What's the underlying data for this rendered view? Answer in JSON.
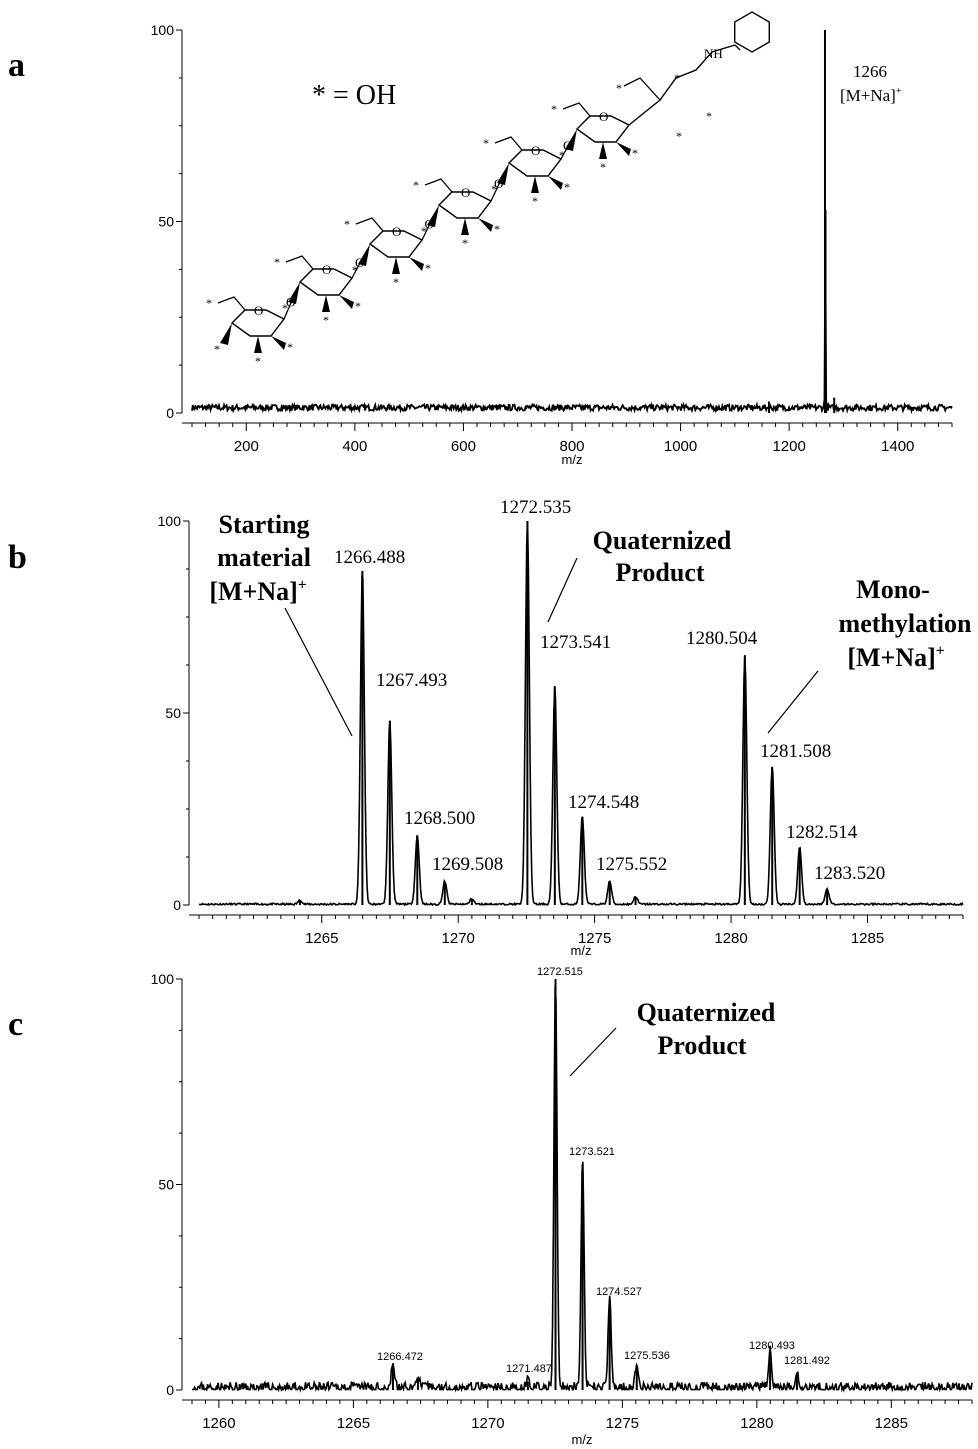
{
  "chart_data": [
    {
      "panel": "a",
      "type": "line",
      "xlabel": "m/z",
      "xlim": [
        100,
        1500
      ],
      "ylim": [
        0,
        100
      ],
      "x_ticks": [
        200,
        400,
        600,
        800,
        1000,
        1200,
        1400
      ],
      "y_ticks": [
        0,
        50,
        100
      ],
      "legend_text": "* = OH",
      "peaks": [
        {
          "x": 1266,
          "y": 100
        },
        {
          "x": 1267,
          "y": 53
        },
        {
          "x": 1268,
          "y": 2
        },
        {
          "x": 1283,
          "y": 4
        },
        {
          "x": 1163,
          "y": 3
        }
      ],
      "annotations": [
        {
          "text": "1266",
          "sup": ""
        },
        {
          "text": "[M+Na]",
          "sup": "+"
        }
      ]
    },
    {
      "panel": "b",
      "type": "line",
      "xlabel": "m/z",
      "xlim": [
        1260.5,
        1288.5
      ],
      "ylim": [
        0,
        100
      ],
      "x_ticks": [
        1265,
        1270,
        1275,
        1280,
        1285
      ],
      "y_ticks": [
        0,
        50,
        100
      ],
      "peaks": [
        {
          "x": 1266.488,
          "y": 87,
          "label": "1266.488"
        },
        {
          "x": 1267.493,
          "y": 48,
          "label": "1267.493"
        },
        {
          "x": 1268.5,
          "y": 18,
          "label": "1268.500"
        },
        {
          "x": 1269.508,
          "y": 6,
          "label": "1269.508"
        },
        {
          "x": 1272.535,
          "y": 100,
          "label": "1272.535"
        },
        {
          "x": 1273.541,
          "y": 57,
          "label": "1273.541"
        },
        {
          "x": 1274.548,
          "y": 23,
          "label": "1274.548"
        },
        {
          "x": 1275.552,
          "y": 6,
          "label": "1275.552"
        },
        {
          "x": 1280.504,
          "y": 65,
          "label": "1280.504"
        },
        {
          "x": 1281.508,
          "y": 36,
          "label": "1281.508"
        },
        {
          "x": 1282.514,
          "y": 15,
          "label": "1282.514"
        },
        {
          "x": 1283.52,
          "y": 4,
          "label": "1283.520"
        },
        {
          "x": 1264.2,
          "y": 1
        },
        {
          "x": 1270.5,
          "y": 1.5
        },
        {
          "x": 1276.5,
          "y": 2
        }
      ],
      "annotations": [
        {
          "lines": [
            "Starting",
            "material",
            "[M+Na]"
          ],
          "sup": "+"
        },
        {
          "lines": [
            "Quaternized",
            "Product"
          ],
          "sup": ""
        },
        {
          "lines": [
            "Mono-",
            "methylation",
            "[M+Na]"
          ],
          "sup": "+"
        }
      ]
    },
    {
      "panel": "c",
      "type": "line",
      "xlabel": "m/z",
      "xlim": [
        1259,
        1288
      ],
      "ylim": [
        0,
        100
      ],
      "x_ticks": [
        1260,
        1265,
        1270,
        1275,
        1280,
        1285
      ],
      "y_ticks": [
        0,
        50,
        100
      ],
      "peaks": [
        {
          "x": 1266.472,
          "y": 6,
          "label": "1266.472"
        },
        {
          "x": 1267.4,
          "y": 3
        },
        {
          "x": 1271.487,
          "y": 2,
          "label": "1271.487"
        },
        {
          "x": 1272.515,
          "y": 100,
          "label": "1272.515"
        },
        {
          "x": 1273.521,
          "y": 55,
          "label": "1273.521"
        },
        {
          "x": 1274.527,
          "y": 22,
          "label": "1274.527"
        },
        {
          "x": 1275.536,
          "y": 6,
          "label": "1275.536"
        },
        {
          "x": 1280.493,
          "y": 9,
          "label": "1280.493"
        },
        {
          "x": 1281.492,
          "y": 4,
          "label": "1281.492"
        }
      ],
      "annotations": [
        {
          "lines": [
            "Quaternized",
            "Product"
          ],
          "sup": ""
        }
      ]
    }
  ]
}
